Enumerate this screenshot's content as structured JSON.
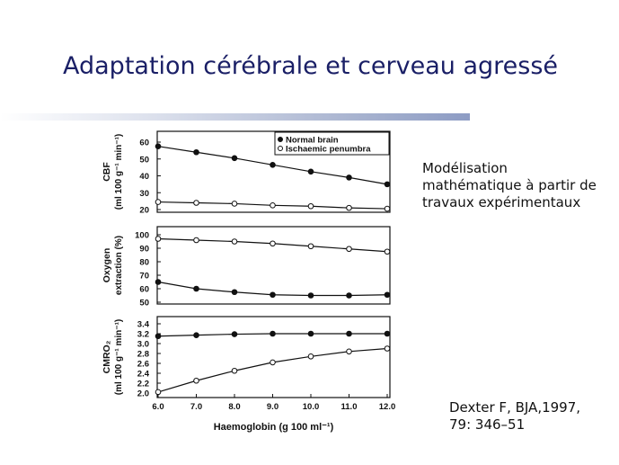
{
  "slide": {
    "title": "Adaptation cérébrale et cerveau agressé",
    "note_lines": [
      "Modélisation",
      "mathématique à partir de",
      "travaux expérimentaux"
    ],
    "reference_lines": [
      "Dexter F, BJA,1997,",
      "79: 346–51"
    ]
  },
  "chart_data": {
    "type": "line",
    "shared_x": {
      "label": "Haemoglobin (g 100 ml⁻¹)",
      "values": [
        6,
        7,
        8,
        9,
        10,
        11,
        12
      ],
      "tick_labels": [
        "6.0",
        "7.0",
        "8.0",
        "9.0",
        "10.0",
        "11.0",
        "12.0"
      ],
      "range": [
        6,
        12
      ]
    },
    "legend": {
      "placement": "top-right",
      "entries": [
        {
          "name": "Normal brain",
          "marker": "filled"
        },
        {
          "name": "Ischaemic penumbra",
          "marker": "open"
        }
      ]
    },
    "panels": [
      {
        "ylabel_lines": [
          "CBF",
          "(ml 100 g⁻¹ min⁻¹)"
        ],
        "ylim": [
          20,
          60
        ],
        "yticks": [
          20,
          30,
          40,
          50,
          60
        ],
        "series": [
          {
            "name": "Normal brain",
            "marker": "filled",
            "x": [
              6,
              7,
              8,
              9,
              10,
              11,
              12
            ],
            "y": [
              57.5,
              54,
              50.5,
              46.5,
              42.5,
              39,
              35
            ]
          },
          {
            "name": "Ischaemic penumbra",
            "marker": "open",
            "x": [
              6,
              7,
              8,
              9,
              10,
              11,
              12
            ],
            "y": [
              24.5,
              24,
              23.5,
              22.5,
              22,
              21,
              20.5
            ]
          }
        ]
      },
      {
        "ylabel_lines": [
          "Oxygen",
          "extraction (%)"
        ],
        "ylim": [
          50,
          100
        ],
        "yticks": [
          50,
          60,
          70,
          80,
          90,
          100
        ],
        "series": [
          {
            "name": "Ischaemic penumbra",
            "marker": "open",
            "x": [
              6,
              7,
              8,
              9,
              10,
              11,
              12
            ],
            "y": [
              97,
              96,
              95,
              93.5,
              91.5,
              89.5,
              87.5
            ]
          },
          {
            "name": "Normal brain",
            "marker": "filled",
            "x": [
              6,
              7,
              8,
              9,
              10,
              11,
              12
            ],
            "y": [
              65,
              60,
              57.5,
              55.5,
              55,
              55,
              55.5
            ]
          }
        ]
      },
      {
        "ylabel_lines": [
          "CMRO₂",
          "(ml 100 g⁻¹ min⁻¹)"
        ],
        "ylim": [
          2.0,
          3.4
        ],
        "yticks": [
          2.0,
          2.2,
          2.4,
          2.6,
          2.8,
          3.0,
          3.2,
          3.4
        ],
        "ytick_labels": [
          "2.0",
          "2.2",
          "2.4",
          "2.6",
          "2.8",
          "3.0",
          "3.2",
          "3.4"
        ],
        "series": [
          {
            "name": "Normal brain",
            "marker": "filled",
            "x": [
              6,
              7,
              8,
              9,
              10,
              11,
              12
            ],
            "y": [
              3.15,
              3.17,
              3.19,
              3.2,
              3.2,
              3.2,
              3.2
            ]
          },
          {
            "name": "Ischaemic penumbra",
            "marker": "open",
            "x": [
              6,
              7,
              8,
              9,
              10,
              11,
              12
            ],
            "y": [
              2.02,
              2.25,
              2.45,
              2.62,
              2.74,
              2.84,
              2.9
            ]
          }
        ]
      }
    ]
  }
}
